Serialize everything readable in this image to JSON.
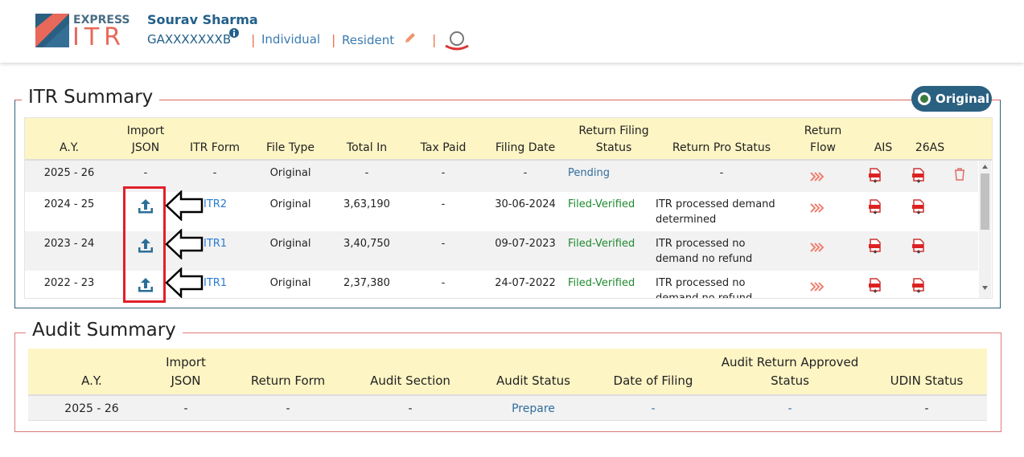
{
  "header": {
    "logo_top": "EXPRESS",
    "logo_bottom": "ITR",
    "name": "Sourav Sharma",
    "pan": "GAXXXXXXXB",
    "category": "Individual",
    "residency": "Resident"
  },
  "itr_summary": {
    "title": "ITR Summary",
    "badge": "Original",
    "columns": [
      "A.Y.",
      "Import JSON",
      "ITR Form",
      "File Type",
      "Total In",
      "Tax Paid",
      "Filing Date",
      "Return Filing Status",
      "Return Pro Status",
      "Return Flow",
      "AIS",
      "26AS"
    ],
    "rows": [
      {
        "ay": "2025 - 26",
        "import": "-",
        "form": "-",
        "file_type": "Original",
        "total_in": "-",
        "tax_paid": "-",
        "filing_date": "-",
        "status": "Pending",
        "pro_status": "-"
      },
      {
        "ay": "2024 - 25",
        "form": "ITR2",
        "file_type": "Original",
        "total_in": "3,63,190",
        "tax_paid": "-",
        "filing_date": "30-06-2024",
        "status": "Filed-Verified",
        "pro_status": "ITR processed demand determined"
      },
      {
        "ay": "2023 - 24",
        "form": "ITR1",
        "file_type": "Original",
        "total_in": "3,40,750",
        "tax_paid": "-",
        "filing_date": "09-07-2023",
        "status": "Filed-Verified",
        "pro_status": "ITR processed no demand no refund"
      },
      {
        "ay": "2022 - 23",
        "form": "ITR1",
        "file_type": "Original",
        "total_in": "2,37,380",
        "tax_paid": "-",
        "filing_date": "24-07-2022",
        "status": "Filed-Verified",
        "pro_status": "ITR processed no demand no refund"
      }
    ]
  },
  "audit_summary": {
    "title": "Audit Summary",
    "columns": [
      "A.Y.",
      "Import JSON",
      "Return Form",
      "Audit Section",
      "Audit Status",
      "Date of Filing",
      "Audit Return Approved Status",
      "UDIN Status"
    ],
    "rows": [
      [
        "2025 - 26",
        "-",
        "-",
        "-",
        "Prepare",
        "-",
        "-",
        "-"
      ]
    ]
  }
}
